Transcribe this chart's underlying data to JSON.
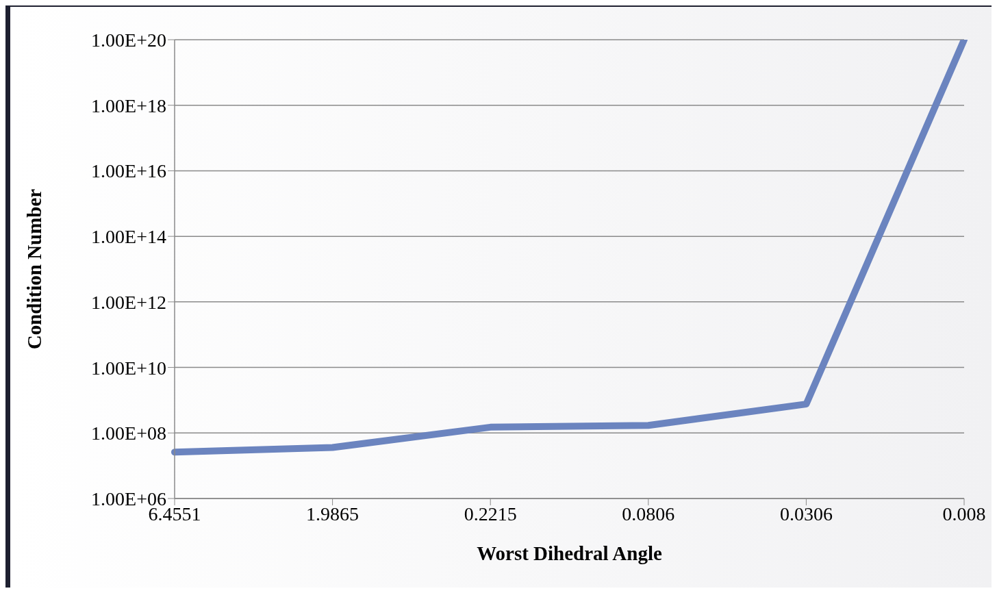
{
  "chart_data": {
    "type": "line",
    "xlabel": "Worst Dihedral Angle",
    "ylabel": "Condition Number",
    "categories": [
      "6.4551",
      "1.9865",
      "0.2215",
      "0.0806",
      "0.0306",
      "0.008"
    ],
    "series": [
      {
        "color": "#6b84bf",
        "values": [
          26000000.0,
          36000000.0,
          150000000.0,
          170000000.0,
          760000000.0,
          1e+20
        ]
      }
    ],
    "log": "y",
    "ylim": [
      1000000.0,
      1e+20
    ],
    "yticks": [
      {
        "value": 1000000.0,
        "label": "1.00E+06"
      },
      {
        "value": 100000000.0,
        "label": "1.00E+08"
      },
      {
        "value": 10000000000.0,
        "label": "1.00E+10"
      },
      {
        "value": 1000000000000.0,
        "label": "1.00E+12"
      },
      {
        "value": 100000000000000.0,
        "label": "1.00E+14"
      },
      {
        "value": 1e+16,
        "label": "1.00E+16"
      },
      {
        "value": 1e+18,
        "label": "1.00E+18"
      },
      {
        "value": 1e+20,
        "label": "1.00E+20"
      }
    ],
    "grid": "y",
    "legend": false,
    "marker": "none",
    "line_style": "solid"
  }
}
